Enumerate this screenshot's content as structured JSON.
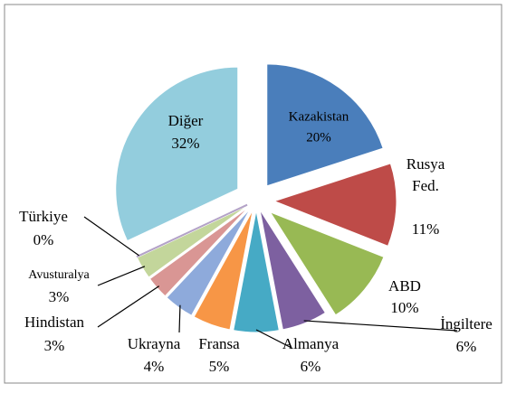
{
  "chart_data": {
    "type": "pie",
    "categories": [
      "Kazakistan",
      "Rusya Fed.",
      "ABD",
      "İngiltere",
      "Almanya",
      "Fransa",
      "Ukrayna",
      "Hindistan",
      "Avusturalya",
      "Türkiye",
      "Diğer"
    ],
    "values": [
      20,
      11,
      10,
      6,
      6,
      5,
      4,
      3,
      3,
      0,
      32
    ],
    "value_labels": [
      "20%",
      "11%",
      "10%",
      "6%",
      "6%",
      "5%",
      "4%",
      "3%",
      "3%",
      "0%",
      "32%"
    ],
    "colors": [
      "#4a7ebb",
      "#be4b48",
      "#98b954",
      "#7d60a0",
      "#46aac5",
      "#f79646",
      "#8eaadb",
      "#d99694",
      "#c3d69b",
      "#b3a2c7",
      "#93cddd"
    ]
  }
}
